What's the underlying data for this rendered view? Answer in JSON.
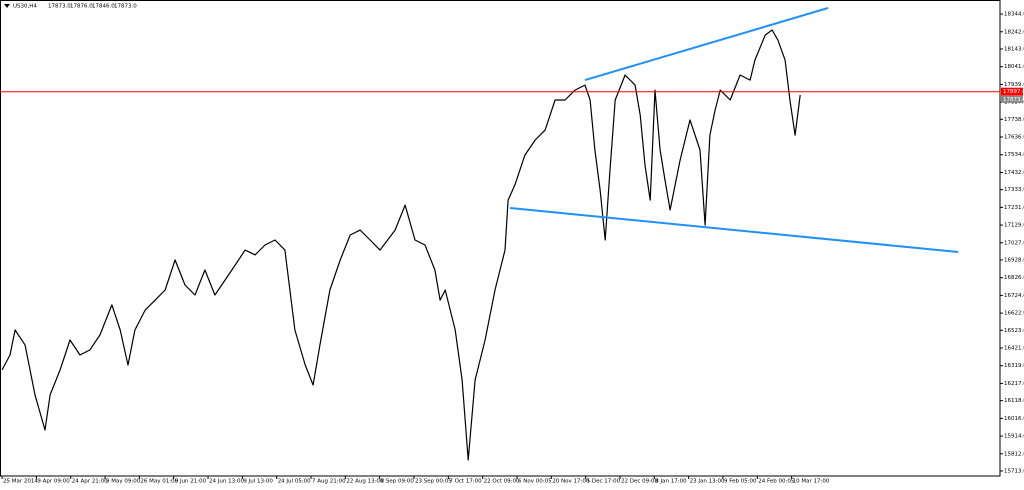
{
  "chart_data": {
    "type": "line",
    "title": "US30,H4",
    "header_quotes": [
      "17873.0",
      "17876.0",
      "17846.0",
      "17873.0"
    ],
    "series": [
      {
        "color": "#000000",
        "x": [
          0,
          0.23,
          0.38,
          0.67,
          0.96,
          1.25,
          1.4,
          1.69,
          1.98,
          2.27,
          2.56,
          2.85,
          3.2,
          3.44,
          3.67,
          3.87,
          4.17,
          4.46,
          4.75,
          5.04,
          5.33,
          5.62,
          5.91,
          6.2,
          6.5,
          6.79,
          7.08,
          7.37,
          7.66,
          7.95,
          8.24,
          8.53,
          8.83,
          9.06,
          9.26,
          9.55,
          9.85,
          10.14,
          10.43,
          10.72,
          11.01,
          11.45,
          11.74,
          12.03,
          12.32,
          12.61,
          12.76,
          12.91,
          13.2,
          13.4,
          13.58,
          13.78,
          14.07,
          14.36,
          14.65,
          14.74,
          14.94,
          15.23,
          15.53,
          15.82,
          16.11,
          16.4,
          16.69,
          16.98,
          17.13,
          17.27,
          17.42,
          17.57,
          17.71,
          17.86,
          18.15,
          18.44,
          18.59,
          18.73,
          18.88,
          19.02,
          19.17,
          19.31,
          19.46,
          19.75,
          20.04,
          20.33,
          20.48,
          20.62,
          20.77,
          20.92,
          21.21,
          21.5,
          21.79,
          21.93,
          22.23,
          22.43,
          22.6,
          22.81,
          22.95,
          23.1,
          23.25
        ],
        "values": [
          16295,
          16381,
          16525,
          16438,
          16151,
          15949,
          16151,
          16295,
          16467,
          16381,
          16410,
          16496,
          16669,
          16525,
          16323,
          16525,
          16640,
          16697,
          16755,
          16928,
          16784,
          16726,
          16870,
          16726,
          16813,
          16899,
          16985,
          16957,
          17014,
          17043,
          16985,
          16525,
          16323,
          16208,
          16438,
          16755,
          16928,
          17072,
          17100,
          17043,
          16985,
          17100,
          17244,
          17043,
          17014,
          16870,
          16697,
          16755,
          16525,
          16237,
          15776,
          16237,
          16467,
          16755,
          16985,
          17273,
          17360,
          17532,
          17619,
          17676,
          17849,
          17849,
          17906,
          17935,
          17849,
          17561,
          17331,
          17043,
          17446,
          17849,
          17993,
          17935,
          17763,
          17475,
          17273,
          17906,
          17561,
          17388,
          17216,
          17503,
          17734,
          17561,
          17129,
          17647,
          17791,
          17906,
          17849,
          17993,
          17964,
          18079,
          18223,
          18252,
          18194,
          18079,
          17849,
          17647,
          17878
        ]
      }
    ],
    "trendlines": [
      {
        "color": "#1e90ff",
        "x": [
          16.98,
          24.06
        ],
        "values": [
          17964,
          18379
        ]
      },
      {
        "color": "#1e90ff",
        "x": [
          14.8,
          27.85
        ],
        "values": [
          17227,
          16974
        ]
      }
    ],
    "hline": {
      "value": 17897,
      "label": "17897.0",
      "color": "#ff0000"
    },
    "price_label": {
      "value": 17873,
      "label": "17873.0"
    },
    "xlim": [
      -0.06,
      29.07
    ],
    "ylim": [
      15684,
      18425
    ],
    "xticks": [
      {
        "value": 0,
        "label": "25 Mar 2014"
      },
      {
        "value": 1,
        "label": "9 Apr 09:00"
      },
      {
        "value": 2,
        "label": "24 Apr 21:00"
      },
      {
        "value": 3,
        "label": "9 May 09:00"
      },
      {
        "value": 4,
        "label": "26 May 01:00"
      },
      {
        "value": 5,
        "label": "9 Jun 21:00"
      },
      {
        "value": 6,
        "label": "24 Jun 13:00"
      },
      {
        "value": 7,
        "label": "9 Jul 13:00"
      },
      {
        "value": 8,
        "label": "24 Jul 05:00"
      },
      {
        "value": 9,
        "label": "7 Aug 21:00"
      },
      {
        "value": 10,
        "label": "22 Aug 13:00"
      },
      {
        "value": 11,
        "label": "8 Sep 09:00"
      },
      {
        "value": 12,
        "label": "23 Sep 00:05"
      },
      {
        "value": 13,
        "label": "7 Oct 17:00"
      },
      {
        "value": 14,
        "label": "22 Oct 09:00"
      },
      {
        "value": 15,
        "label": "6 Nov 00:05"
      },
      {
        "value": 16,
        "label": "20 Nov 17:00"
      },
      {
        "value": 17,
        "label": "5 Dec 17:00"
      },
      {
        "value": 18,
        "label": "22 Dec 09:00"
      },
      {
        "value": 19,
        "label": "8 Jan 17:00"
      },
      {
        "value": 20,
        "label": "23 Jan 13:00"
      },
      {
        "value": 21,
        "label": "9 Feb 05:00"
      },
      {
        "value": 22,
        "label": "24 Feb 00:05"
      },
      {
        "value": 23,
        "label": "10 Mar 17:00"
      }
    ],
    "yticks": [
      {
        "value": 18344,
        "label": "18344.0"
      },
      {
        "value": 18242,
        "label": "18242.0"
      },
      {
        "value": 18143,
        "label": "18143.0"
      },
      {
        "value": 18041,
        "label": "18041.0"
      },
      {
        "value": 17939,
        "label": "17939.0"
      },
      {
        "value": 17837,
        "label": "17837.0"
      },
      {
        "value": 17738,
        "label": "17738.0"
      },
      {
        "value": 17636,
        "label": "17636.0"
      },
      {
        "value": 17534,
        "label": "17534.0"
      },
      {
        "value": 17432,
        "label": "17432.0"
      },
      {
        "value": 17333,
        "label": "17333.0"
      },
      {
        "value": 17231,
        "label": "17231.0"
      },
      {
        "value": 17129,
        "label": "17129.0"
      },
      {
        "value": 17027,
        "label": "17027.0"
      },
      {
        "value": 16928,
        "label": "16928.0"
      },
      {
        "value": 16826,
        "label": "16826.0"
      },
      {
        "value": 16724,
        "label": "16724.0"
      },
      {
        "value": 16622,
        "label": "16622.0"
      },
      {
        "value": 16523,
        "label": "16523.0"
      },
      {
        "value": 16421,
        "label": "16421.0"
      },
      {
        "value": 16319,
        "label": "16319.0"
      },
      {
        "value": 16217,
        "label": "16217.0"
      },
      {
        "value": 16118,
        "label": "16118.0"
      },
      {
        "value": 16016,
        "label": "16016.0"
      },
      {
        "value": 15914,
        "label": "15914.0"
      },
      {
        "value": 15812,
        "label": "15812.0"
      },
      {
        "value": 15713,
        "label": "15713.0"
      }
    ],
    "grid": false
  }
}
